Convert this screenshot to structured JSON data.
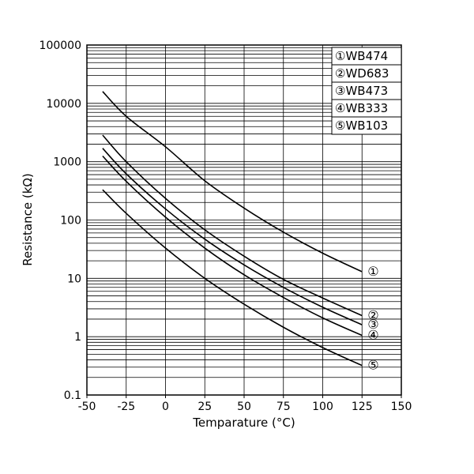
{
  "page": {
    "background": "#ffffff"
  },
  "chart_data": {
    "type": "line",
    "title": "",
    "xlabel": "Temparature (°C)",
    "ylabel": "Resistance (kΩ)",
    "xlim": [
      -50,
      150
    ],
    "x_ticks": [
      -50,
      -25,
      0,
      25,
      50,
      75,
      100,
      125,
      150
    ],
    "y_scale": "log",
    "ylim": [
      0.1,
      100000
    ],
    "y_ticks": [
      0.1,
      1,
      10,
      100,
      1000,
      10000,
      100000
    ],
    "y_tick_labels": [
      "0.1",
      "1",
      "10",
      "100",
      "1000",
      "10000",
      "100000"
    ],
    "grid": true,
    "legend_position": "top-right",
    "line_color": "#000000",
    "x": [
      -40,
      -25,
      0,
      25,
      50,
      75,
      100,
      125
    ],
    "series": [
      {
        "name": "WB474",
        "marker": "①",
        "values": [
          16000,
          6000,
          1800,
          470,
          160,
          62,
          27,
          13
        ]
      },
      {
        "name": "WD683",
        "marker": "②",
        "values": [
          2860,
          1000,
          235,
          68,
          24,
          9.6,
          4.6,
          2.3
        ]
      },
      {
        "name": "WB473",
        "marker": "③",
        "values": [
          1700,
          620,
          155,
          47,
          17,
          7.0,
          3.2,
          1.6
        ]
      },
      {
        "name": "WB333",
        "marker": "④",
        "values": [
          1250,
          460,
          112,
          33,
          11.5,
          4.7,
          2.1,
          1.05
        ]
      },
      {
        "name": "WB103",
        "marker": "⑤",
        "values": [
          330,
          130,
          33,
          10,
          3.6,
          1.45,
          0.65,
          0.32
        ]
      }
    ]
  }
}
